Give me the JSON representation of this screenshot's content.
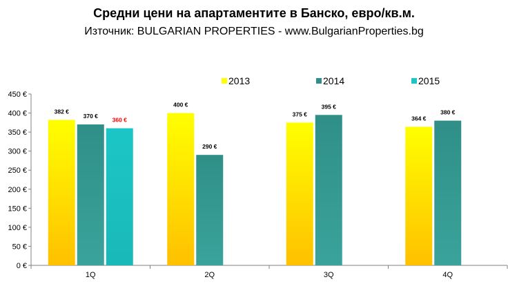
{
  "chart_data": {
    "type": "bar",
    "title": "Средни цени на апартаментите в Банско, евро/кв.м.",
    "subtitle": "Източник: BULGARIAN PROPERTIES - www.BulgarianProperties.bg",
    "categories": [
      "1Q",
      "2Q",
      "3Q",
      "4Q"
    ],
    "series": [
      {
        "name": "2013",
        "values": [
          382,
          400,
          375,
          364
        ],
        "labels": [
          "382 €",
          "400 €",
          "375 €",
          "364 €"
        ]
      },
      {
        "name": "2014",
        "values": [
          370,
          290,
          395,
          380
        ],
        "labels": [
          "370 €",
          "290 €",
          "395 €",
          "380 €"
        ]
      },
      {
        "name": "2015",
        "values": [
          360,
          null,
          null,
          null
        ],
        "labels": [
          "360 €",
          null,
          null,
          null
        ]
      }
    ],
    "ylim": [
      0,
      450
    ],
    "y_ticks": [
      0,
      50,
      100,
      150,
      200,
      250,
      300,
      350,
      400,
      450
    ],
    "y_tick_labels": [
      "0 €",
      "50 €",
      "100 €",
      "150 €",
      "200 €",
      "250 €",
      "300 €",
      "350 €",
      "400 €",
      "450 €"
    ],
    "grid": false,
    "legend": "top",
    "xlabel": "",
    "ylabel": "",
    "colors": {
      "2013_top": "#ffff00",
      "2013_bottom": "#ffc000",
      "2014_top": "#2f8f88",
      "2014_bottom": "#3aa39b",
      "2015": "#1cc6c6",
      "label_2015": "#ff0000",
      "label_default": "#000000",
      "axis": "#808080"
    }
  }
}
